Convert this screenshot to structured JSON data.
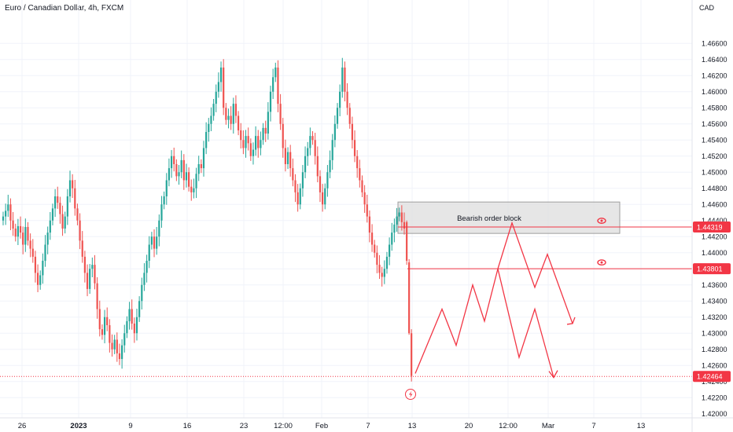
{
  "header": {
    "title": "Euro / Canadian Dollar, 4h, FXCM",
    "currency": "CAD"
  },
  "colors": {
    "up": "#26a69a",
    "down": "#ef5350",
    "drawing": "#f23645",
    "zone_fill": "#e0e0e0",
    "zone_border": "#9e9e9e",
    "grid": "#f0f3fa",
    "axis_text": "#131722"
  },
  "chart_data": {
    "type": "candlestick",
    "symbol": "EURCAD",
    "timeframe": "4h",
    "ylim": [
      1.419,
      1.468
    ],
    "yticks": [
      "1.46600",
      "1.46400",
      "1.46200",
      "1.46000",
      "1.45800",
      "1.45600",
      "1.45400",
      "1.45200",
      "1.45000",
      "1.44800",
      "1.44600",
      "1.44400",
      "1.44200",
      "1.44000",
      "1.43800",
      "1.43600",
      "1.43400",
      "1.43200",
      "1.43000",
      "1.42800",
      "1.42600",
      "1.42400",
      "1.42200",
      "1.42000"
    ],
    "xticks": [
      {
        "label": "26",
        "bold": false
      },
      {
        "label": "2023",
        "bold": true
      },
      {
        "label": "9",
        "bold": false
      },
      {
        "label": "16",
        "bold": false
      },
      {
        "label": "23",
        "bold": false
      },
      {
        "label": "12:00",
        "bold": false
      },
      {
        "label": "Feb",
        "bold": false
      },
      {
        "label": "7",
        "bold": false
      },
      {
        "label": "13",
        "bold": false
      },
      {
        "label": "20",
        "bold": false
      },
      {
        "label": "12:00",
        "bold": false
      },
      {
        "label": "Mar",
        "bold": false
      },
      {
        "label": "7",
        "bold": false
      },
      {
        "label": "13",
        "bold": false
      }
    ],
    "candles_close": [
      1.4445,
      1.4452,
      1.446,
      1.444,
      1.443,
      1.442,
      1.4433,
      1.4425,
      1.441,
      1.4432,
      1.4415,
      1.4405,
      1.4395,
      1.4375,
      1.436,
      1.4372,
      1.439,
      1.441,
      1.4425,
      1.444,
      1.4455,
      1.447,
      1.4462,
      1.4448,
      1.443,
      1.4445,
      1.447,
      1.449,
      1.448,
      1.4455,
      1.444,
      1.4415,
      1.4395,
      1.4375,
      1.4355,
      1.438,
      1.4385,
      1.4362,
      1.433,
      1.4305,
      1.4298,
      1.432,
      1.431,
      1.4288,
      1.428,
      1.4292,
      1.4275,
      1.4268,
      1.4285,
      1.43,
      1.4315,
      1.433,
      1.4312,
      1.43,
      1.432,
      1.434,
      1.436,
      1.4375,
      1.439,
      1.441,
      1.442,
      1.4405,
      1.442,
      1.444,
      1.446,
      1.447,
      1.449,
      1.4505,
      1.452,
      1.451,
      1.4495,
      1.45,
      1.4515,
      1.449,
      1.45,
      1.4482,
      1.4475,
      1.448,
      1.4498,
      1.451,
      1.4505,
      1.453,
      1.455,
      1.456,
      1.457,
      1.4585,
      1.46,
      1.4612,
      1.463,
      1.458,
      1.4565,
      1.457,
      1.456,
      1.4585,
      1.457,
      1.4552,
      1.454,
      1.453,
      1.4545,
      1.4536,
      1.452,
      1.4528,
      1.4545,
      1.453,
      1.454,
      1.4555,
      1.4548,
      1.4575,
      1.46,
      1.4618,
      1.463,
      1.4585,
      1.456,
      1.453,
      1.451,
      1.4525,
      1.4505,
      1.449,
      1.4475,
      1.446,
      1.448,
      1.45,
      1.452,
      1.453,
      1.4545,
      1.454,
      1.452,
      1.4495,
      1.4475,
      1.446,
      1.448,
      1.45,
      1.4515,
      1.454,
      1.456,
      1.458,
      1.46,
      1.463,
      1.46,
      1.458,
      1.456,
      1.454,
      1.452,
      1.4505,
      1.449,
      1.4475,
      1.446,
      1.4445,
      1.4425,
      1.441,
      1.44,
      1.4385,
      1.4375,
      1.437,
      1.438,
      1.4395,
      1.441,
      1.4425,
      1.4435,
      1.4445,
      1.445,
      1.4438,
      1.443
    ],
    "current_price": "1.42464",
    "price_labels": [
      "1.44319",
      "1.43801",
      "1.42464"
    ],
    "horizontal_levels": [
      1.44319,
      1.43801,
      1.42464
    ],
    "zone": {
      "label": "Bearish order block",
      "top": 1.4463,
      "bottom": 1.4424
    },
    "projection_main": [
      1.425,
      1.433,
      1.4285,
      1.436,
      1.4315,
      1.438,
      1.427,
      1.433,
      1.4245
    ],
    "projection_alt": [
      1.438,
      1.4437,
      1.4357,
      1.4398,
      1.4312
    ]
  }
}
